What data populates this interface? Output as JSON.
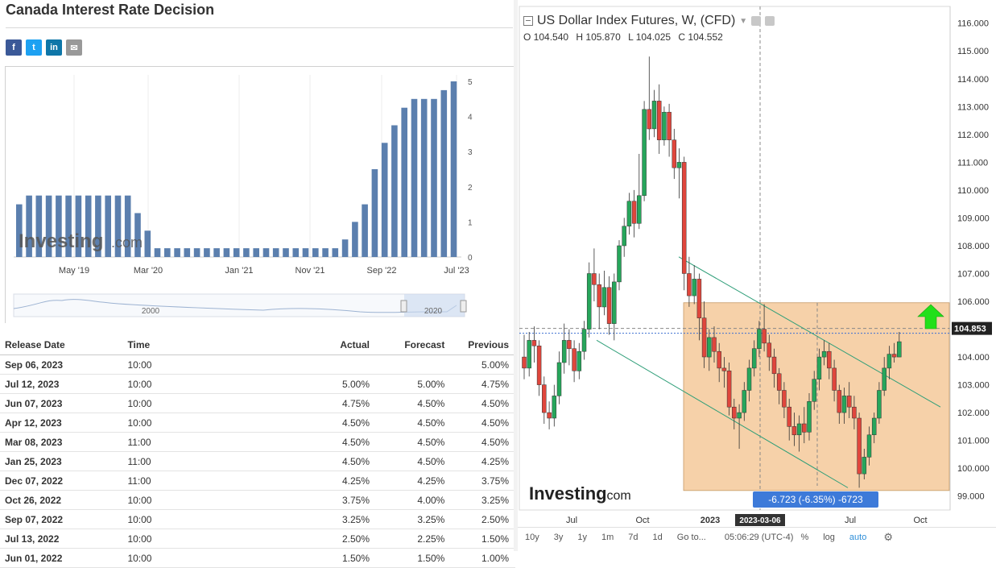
{
  "page": {
    "title": "Canada Interest Rate Decision",
    "share_icons": [
      {
        "name": "facebook-icon",
        "glyph": "f",
        "color": "#3b5998"
      },
      {
        "name": "twitter-icon",
        "glyph": "t",
        "color": "#1da1f2"
      },
      {
        "name": "linkedin-icon",
        "glyph": "in",
        "color": "#0e76a8"
      },
      {
        "name": "email-icon",
        "glyph": "✉",
        "color": "#999999"
      }
    ]
  },
  "rate_chart": {
    "watermark": "Investing",
    "watermark_suffix": ".com",
    "x_ticks": [
      "May '19",
      "Mar '20",
      "Jan '21",
      "Nov '21",
      "Sep '22",
      "Jul '23"
    ],
    "y_ticks": [
      "5",
      "4",
      "3",
      "2",
      "1",
      "0"
    ],
    "navigator_labels": [
      "2000",
      "2020"
    ],
    "bar_color": "#5b7fae",
    "chart_data": {
      "type": "bar",
      "values": [
        1.5,
        1.75,
        1.75,
        1.75,
        1.75,
        1.75,
        1.75,
        1.75,
        1.75,
        1.75,
        1.75,
        1.75,
        1.25,
        0.75,
        0.25,
        0.25,
        0.25,
        0.25,
        0.25,
        0.25,
        0.25,
        0.25,
        0.25,
        0.25,
        0.25,
        0.25,
        0.25,
        0.25,
        0.25,
        0.25,
        0.25,
        0.25,
        0.25,
        0.5,
        1.0,
        1.5,
        2.5,
        3.25,
        3.75,
        4.25,
        4.5,
        4.5,
        4.5,
        4.75,
        5.0
      ],
      "ylim": [
        0,
        5
      ]
    }
  },
  "table": {
    "headers": {
      "date": "Release Date",
      "time": "Time",
      "actual": "Actual",
      "forecast": "Forecast",
      "previous": "Previous"
    },
    "rows": [
      {
        "date": "Sep 06, 2023",
        "time": "10:00",
        "actual": "",
        "forecast": "",
        "previous": "5.00%",
        "status": ""
      },
      {
        "date": "Jul 12, 2023",
        "time": "10:00",
        "actual": "5.00%",
        "forecast": "5.00%",
        "previous": "4.75%",
        "status": ""
      },
      {
        "date": "Jun 07, 2023",
        "time": "10:00",
        "actual": "4.75%",
        "forecast": "4.50%",
        "previous": "4.50%",
        "status": "pos"
      },
      {
        "date": "Apr 12, 2023",
        "time": "10:00",
        "actual": "4.50%",
        "forecast": "4.50%",
        "previous": "4.50%",
        "status": ""
      },
      {
        "date": "Mar 08, 2023",
        "time": "11:00",
        "actual": "4.50%",
        "forecast": "4.50%",
        "previous": "4.50%",
        "status": ""
      },
      {
        "date": "Jan 25, 2023",
        "time": "11:00",
        "actual": "4.50%",
        "forecast": "4.50%",
        "previous": "4.25%",
        "status": ""
      },
      {
        "date": "Dec 07, 2022",
        "time": "11:00",
        "actual": "4.25%",
        "forecast": "4.25%",
        "previous": "3.75%",
        "status": ""
      },
      {
        "date": "Oct 26, 2022",
        "time": "10:00",
        "actual": "3.75%",
        "forecast": "4.00%",
        "previous": "3.25%",
        "status": "neg"
      },
      {
        "date": "Sep 07, 2022",
        "time": "10:00",
        "actual": "3.25%",
        "forecast": "3.25%",
        "previous": "2.50%",
        "status": ""
      },
      {
        "date": "Jul 13, 2022",
        "time": "10:00",
        "actual": "2.50%",
        "forecast": "2.25%",
        "previous": "1.50%",
        "status": "pos"
      },
      {
        "date": "Jun 01, 2022",
        "time": "10:00",
        "actual": "1.50%",
        "forecast": "1.50%",
        "previous": "1.00%",
        "status": ""
      }
    ]
  },
  "usd_chart": {
    "title": "US Dollar Index Futures, W, (CFD)",
    "ohlc": {
      "o": "O 104.540",
      "h": "H 105.870",
      "l": "L 104.025",
      "c": "C 104.552"
    },
    "price_labels": [
      "116.000",
      "115.000",
      "114.000",
      "113.000",
      "112.000",
      "111.000",
      "110.000",
      "109.000",
      "108.000",
      "107.000",
      "106.000",
      "105.000",
      "104.000",
      "103.000",
      "102.000",
      "101.000",
      "100.000",
      "99.000"
    ],
    "current_price": "104.853",
    "x_labels": [
      "Jul",
      "Oct",
      "2023",
      "Jul",
      "Oct"
    ],
    "cursor_date": "2023-03-06",
    "measure_label": "-6.723 (-6.35%) -6723",
    "watermark": "Investing",
    "watermark_suffix": ".com",
    "up_color": "#26a65b",
    "down_color": "#e0463c",
    "box_color": "#f5c99a",
    "chart_data": {
      "type": "candlestick",
      "ylim": [
        98.5,
        116.6
      ],
      "candles": [
        [
          104.0,
          103.6,
          104.8,
          103.2
        ],
        [
          103.6,
          104.6,
          104.9,
          103.3
        ],
        [
          104.6,
          104.4,
          105.1,
          103.8
        ],
        [
          104.4,
          103.0,
          104.6,
          102.6
        ],
        [
          103.0,
          102.0,
          103.3,
          101.6
        ],
        [
          102.0,
          101.8,
          102.4,
          101.4
        ],
        [
          101.8,
          102.6,
          103.0,
          101.5
        ],
        [
          102.6,
          103.8,
          104.2,
          102.3
        ],
        [
          103.8,
          104.6,
          105.2,
          103.4
        ],
        [
          104.6,
          104.3,
          105.0,
          103.7
        ],
        [
          104.3,
          103.5,
          104.6,
          103.1
        ],
        [
          103.5,
          104.2,
          104.5,
          103.2
        ],
        [
          104.2,
          105.0,
          105.3,
          103.9
        ],
        [
          105.0,
          107.0,
          107.4,
          104.7
        ],
        [
          107.0,
          106.6,
          107.9,
          106.0
        ],
        [
          106.6,
          105.8,
          107.0,
          105.0
        ],
        [
          105.8,
          106.5,
          107.1,
          105.5
        ],
        [
          106.5,
          105.2,
          106.9,
          104.8
        ],
        [
          105.2,
          106.7,
          107.0,
          104.6
        ],
        [
          106.7,
          108.0,
          108.2,
          106.4
        ],
        [
          108.0,
          108.7,
          109.0,
          107.6
        ],
        [
          108.7,
          109.6,
          109.9,
          108.4
        ],
        [
          109.6,
          108.8,
          110.0,
          108.3
        ],
        [
          108.8,
          109.8,
          111.3,
          108.6
        ],
        [
          109.8,
          112.9,
          113.2,
          109.6
        ],
        [
          112.9,
          112.2,
          114.8,
          111.8
        ],
        [
          112.2,
          113.2,
          113.6,
          111.9
        ],
        [
          113.2,
          111.8,
          113.8,
          111.3
        ],
        [
          111.8,
          112.8,
          113.0,
          111.6
        ],
        [
          112.8,
          111.8,
          113.1,
          111.2
        ],
        [
          111.8,
          110.8,
          112.2,
          110.4
        ],
        [
          110.8,
          111.0,
          111.5,
          109.7
        ],
        [
          111.0,
          107.0,
          111.2,
          106.4
        ],
        [
          107.0,
          106.2,
          107.6,
          105.8
        ],
        [
          106.2,
          106.8,
          107.3,
          105.9
        ],
        [
          106.8,
          105.4,
          107.0,
          104.6
        ],
        [
          105.4,
          104.0,
          106.0,
          103.6
        ],
        [
          104.0,
          104.7,
          105.0,
          103.5
        ],
        [
          104.7,
          104.2,
          105.1,
          103.8
        ],
        [
          104.2,
          103.6,
          104.5,
          103.1
        ],
        [
          103.6,
          103.5,
          104.0,
          102.9
        ],
        [
          103.5,
          102.2,
          103.8,
          101.9
        ],
        [
          102.2,
          101.8,
          102.5,
          101.4
        ],
        [
          101.8,
          102.0,
          102.3,
          100.7
        ],
        [
          102.0,
          102.8,
          103.1,
          101.7
        ],
        [
          102.8,
          103.6,
          103.9,
          102.4
        ],
        [
          103.6,
          104.3,
          104.6,
          103.3
        ],
        [
          104.3,
          105.0,
          105.3,
          104.0
        ],
        [
          105.0,
          104.5,
          105.9,
          104.2
        ],
        [
          104.5,
          104.0,
          104.8,
          103.5
        ],
        [
          104.0,
          103.4,
          104.3,
          102.9
        ],
        [
          103.4,
          102.8,
          103.6,
          102.3
        ],
        [
          102.8,
          102.2,
          103.1,
          101.8
        ],
        [
          102.2,
          101.5,
          102.5,
          101.0
        ],
        [
          101.5,
          101.2,
          102.0,
          100.8
        ],
        [
          101.2,
          101.6,
          101.9,
          100.6
        ],
        [
          101.6,
          101.3,
          102.2,
          100.9
        ],
        [
          101.3,
          102.4,
          102.7,
          101.0
        ],
        [
          102.4,
          103.2,
          103.5,
          102.1
        ],
        [
          103.2,
          104.0,
          104.3,
          102.8
        ],
        [
          104.0,
          104.2,
          104.6,
          103.7
        ],
        [
          104.2,
          103.6,
          104.5,
          103.2
        ],
        [
          103.6,
          102.8,
          103.9,
          102.4
        ],
        [
          102.8,
          102.0,
          103.0,
          101.6
        ],
        [
          102.0,
          102.6,
          102.9,
          101.6
        ],
        [
          102.6,
          102.2,
          103.1,
          101.8
        ],
        [
          102.2,
          101.8,
          102.6,
          101.4
        ],
        [
          101.8,
          99.8,
          102.0,
          99.3
        ],
        [
          99.8,
          100.4,
          100.7,
          99.6
        ],
        [
          100.4,
          101.2,
          101.5,
          100.1
        ],
        [
          101.2,
          101.8,
          102.0,
          100.9
        ],
        [
          101.8,
          102.8,
          103.1,
          101.6
        ],
        [
          102.8,
          103.6,
          104.0,
          102.6
        ],
        [
          103.6,
          104.1,
          104.4,
          103.2
        ],
        [
          104.1,
          104.0,
          104.5,
          103.8
        ],
        [
          104.0,
          104.55,
          104.9,
          104.0
        ]
      ]
    },
    "toolbar": {
      "ranges": [
        "10y",
        "3y",
        "1y",
        "1m",
        "7d",
        "1d",
        "Go to..."
      ],
      "time": "05:06:29 (UTC-4)",
      "percent": "%",
      "log": "log",
      "auto": "auto"
    }
  }
}
